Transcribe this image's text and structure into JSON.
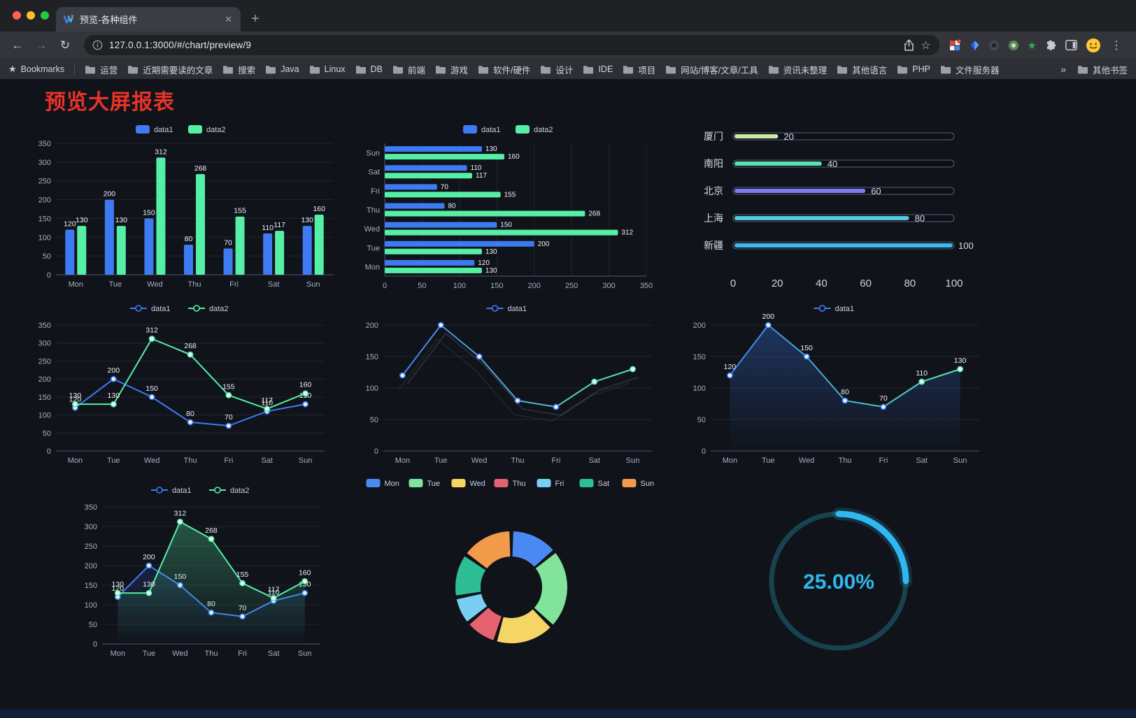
{
  "browser": {
    "window_controls": [
      "#ff5f57",
      "#febc2e",
      "#28c840"
    ],
    "tab": {
      "title": "预览-各种组件"
    },
    "icons": {
      "back": "←",
      "forward": "→",
      "reload": "↻",
      "plus": "+",
      "close": "✕",
      "menu": "⋮",
      "bookmark_star": "☆",
      "bookmarks_star": "★",
      "overflow_chevron": "»",
      "extension_star": "★"
    },
    "address": {
      "url": "127.0.0.1:3000/#/chart/preview/9"
    },
    "bookmarks_label": "Bookmarks",
    "bookmarks": [
      "运营",
      "近期需要读的文章",
      "搜索",
      "Java",
      "Linux",
      "DB",
      "前端",
      "游戏",
      "软件/硬件",
      "设计",
      "IDE",
      "项目",
      "网站/博客/文章/工具",
      "资讯未整理",
      "其他语言",
      "PHP",
      "文件服务器"
    ],
    "other_bookmarks": "其他书签"
  },
  "page": {
    "title": "预览大屏报表",
    "title_color": "#e8332a",
    "background": "#10131a",
    "footer_color": "#0e2138"
  },
  "chart_data": [
    {
      "id": "grouped-bar",
      "type": "bar",
      "legend": true,
      "value_labels": true,
      "categories": [
        "Mon",
        "Tue",
        "Wed",
        "Thu",
        "Fri",
        "Sat",
        "Sun"
      ],
      "series": [
        {
          "name": "data1",
          "color": "#3E7BF2",
          "values": [
            120,
            200,
            150,
            80,
            70,
            110,
            130
          ]
        },
        {
          "name": "data2",
          "color": "#55EFA6",
          "values": [
            130,
            130,
            312,
            268,
            155,
            117,
            160
          ]
        }
      ],
      "ylim": [
        0,
        350
      ],
      "ytick": 50
    },
    {
      "id": "grouped-hbar",
      "type": "hbar",
      "legend": true,
      "value_labels": true,
      "categories": [
        "Mon",
        "Tue",
        "Wed",
        "Thu",
        "Fri",
        "Sat",
        "Sun"
      ],
      "series": [
        {
          "name": "data1",
          "color": "#3E7BF2",
          "values": [
            120,
            200,
            150,
            80,
            70,
            110,
            130
          ]
        },
        {
          "name": "data2",
          "color": "#55EFA6",
          "values": [
            130,
            130,
            312,
            268,
            155,
            117,
            160
          ]
        }
      ],
      "xlim": [
        0,
        350
      ],
      "xtick": 50
    },
    {
      "id": "city-progress",
      "type": "progress",
      "max": 100,
      "axis_ticks": [
        0,
        20,
        40,
        60,
        80,
        100
      ],
      "items": [
        {
          "label": "厦门",
          "value": 20,
          "color": "#CDE9A2"
        },
        {
          "label": "南阳",
          "value": 40,
          "color": "#58E2B0"
        },
        {
          "label": "北京",
          "value": 60,
          "color": "#7F7BF2"
        },
        {
          "label": "上海",
          "value": 80,
          "color": "#54C8DE"
        },
        {
          "label": "新疆",
          "value": 100,
          "color": "#3CB8F2"
        }
      ]
    },
    {
      "id": "dual-line",
      "type": "line",
      "legend": true,
      "value_labels": true,
      "categories": [
        "Mon",
        "Tue",
        "Wed",
        "Thu",
        "Fri",
        "Sat",
        "Sun"
      ],
      "series": [
        {
          "name": "data1",
          "color": "#3E7BF2",
          "values": [
            120,
            200,
            150,
            80,
            70,
            110,
            130
          ]
        },
        {
          "name": "data2",
          "color": "#55EFA6",
          "values": [
            130,
            130,
            312,
            268,
            155,
            117,
            160
          ]
        }
      ],
      "ylim": [
        0,
        350
      ],
      "ytick": 50
    },
    {
      "id": "gradient-line",
      "type": "line",
      "legend": true,
      "value_labels": false,
      "shadow": true,
      "categories": [
        "Mon",
        "Tue",
        "Wed",
        "Thu",
        "Fri",
        "Sat",
        "Sun"
      ],
      "series": [
        {
          "name": "data1",
          "gradient": [
            "#3E7BF2",
            "#55EFA6"
          ],
          "values": [
            120,
            200,
            150,
            80,
            70,
            110,
            130
          ]
        }
      ],
      "ylim": [
        0,
        200
      ],
      "ytick": 50
    },
    {
      "id": "area-line",
      "type": "line",
      "legend": true,
      "value_labels": true,
      "categories": [
        "Mon",
        "Tue",
        "Wed",
        "Thu",
        "Fri",
        "Sat",
        "Sun"
      ],
      "series": [
        {
          "name": "data1",
          "gradient": [
            "#3E7BF2",
            "#55EFA6"
          ],
          "area": true,
          "area_color": "#3E7BF2",
          "area_opacity": 0.32,
          "values": [
            120,
            200,
            150,
            80,
            70,
            110,
            130
          ]
        }
      ],
      "ylim": [
        0,
        200
      ],
      "ytick": 50
    },
    {
      "id": "dual-area-line",
      "type": "line",
      "legend": true,
      "value_labels": true,
      "categories": [
        "Mon",
        "Tue",
        "Wed",
        "Thu",
        "Fri",
        "Sat",
        "Sun"
      ],
      "series": [
        {
          "name": "data1",
          "color": "#3E7BF2",
          "area": true,
          "area_color": "#3E7BF2",
          "area_opacity": 0.16,
          "values": [
            120,
            200,
            150,
            80,
            70,
            110,
            130
          ]
        },
        {
          "name": "data2",
          "color": "#55EFA6",
          "area": true,
          "area_color": "#55EFA6",
          "area_opacity": 0.3,
          "values": [
            130,
            130,
            312,
            268,
            155,
            117,
            160
          ]
        }
      ],
      "ylim": [
        0,
        350
      ],
      "ytick": 50
    },
    {
      "id": "week-donut",
      "type": "donut",
      "items": [
        {
          "label": "Mon",
          "value": 120,
          "color": "#4A89F4"
        },
        {
          "label": "Tue",
          "value": 200,
          "color": "#82E39B"
        },
        {
          "label": "Wed",
          "value": 150,
          "color": "#F5D665"
        },
        {
          "label": "Thu",
          "value": 80,
          "color": "#E5626E"
        },
        {
          "label": "Fri",
          "value": 70,
          "color": "#78CFF2"
        },
        {
          "label": "Sat",
          "value": 110,
          "color": "#2EBE96"
        },
        {
          "label": "Sun",
          "value": 130,
          "color": "#F29B4B"
        }
      ]
    },
    {
      "id": "percent-gauge",
      "type": "gauge",
      "value": 25,
      "display": "25.00%",
      "color": "#2FB7EF",
      "track_color": "#17434F"
    }
  ]
}
